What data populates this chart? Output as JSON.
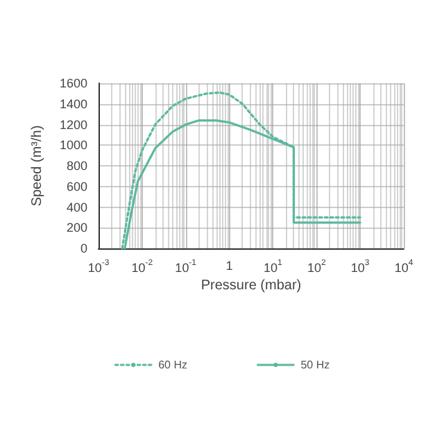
{
  "chart_data": {
    "type": "line",
    "xlabel": "Pressure (mbar)",
    "ylabel": "Speed (m³/h)",
    "log": "x",
    "xlim": [
      0.001,
      10000
    ],
    "xticks": [
      {
        "value": 0.001,
        "label": "10$^{-3}$"
      },
      {
        "value": 0.01,
        "label": "10$^{-2}$"
      },
      {
        "value": 0.1,
        "label": "10$^{-1}$"
      },
      1,
      {
        "value": 10,
        "label": "10$^{1}$"
      },
      {
        "value": 100,
        "label": "10$^{2}$"
      },
      {
        "value": 1000,
        "label": "10$^{3}$"
      },
      {
        "value": 10000,
        "label": "10$^{4}$"
      }
    ],
    "ylim": [
      0,
      1600
    ],
    "yticks": [
      0,
      200,
      400,
      600,
      800,
      1000,
      1200,
      1400,
      1600
    ],
    "grid": true,
    "legend": "bottom",
    "marker": "none",
    "series": [
      {
        "name": "60 Hz",
        "color": "#5bb89e",
        "line_style": "dotted",
        "x": [
          0.0035,
          0.005,
          0.007,
          0.01,
          0.02,
          0.05,
          0.1,
          0.3,
          0.6,
          1,
          2,
          5,
          10,
          30,
          30,
          1000
        ],
        "values": [
          0,
          400,
          750,
          950,
          1200,
          1380,
          1450,
          1500,
          1510,
          1490,
          1400,
          1200,
          1080,
          980,
          300,
          300
        ]
      },
      {
        "name": "50 Hz",
        "color": "#5bb89e",
        "line_style": "solid",
        "x": [
          0.004,
          0.006,
          0.008,
          0.02,
          0.05,
          0.1,
          0.2,
          0.5,
          1,
          3,
          10,
          30,
          30,
          1000
        ],
        "values": [
          0,
          400,
          650,
          970,
          1130,
          1200,
          1240,
          1240,
          1220,
          1150,
          1060,
          980,
          250,
          250
        ]
      }
    ]
  }
}
